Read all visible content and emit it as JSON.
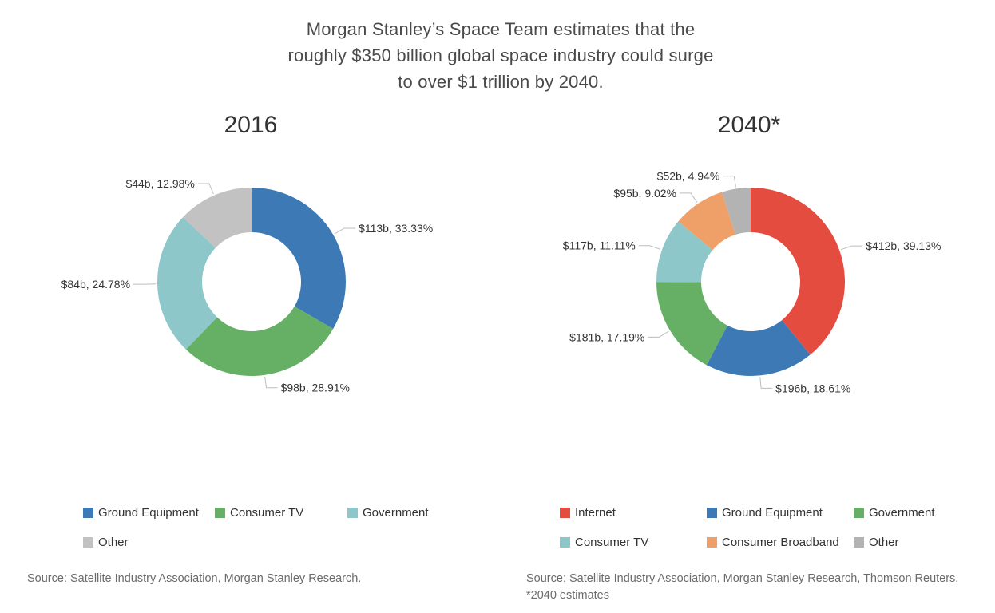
{
  "headline": "Morgan Stanley’s Space Team estimates that the roughly $350 billion global space industry could surge to over $1 trillion by 2040.",
  "headline_lines": [
    "Morgan Stanley’s Space Team estimates that the",
    "roughly $350 billion global space industry could surge",
    "to over $1 trillion by 2040."
  ],
  "chart_data": [
    {
      "type": "pie",
      "donut": true,
      "title": "2016",
      "slices": [
        {
          "name": "Ground Equipment",
          "value": 113,
          "percent": 33.33,
          "label": "$113b, 33.33%",
          "color": "#3d7ab5"
        },
        {
          "name": "Consumer TV",
          "value": 98,
          "percent": 28.91,
          "label": "$98b, 28.91%",
          "color": "#66b066"
        },
        {
          "name": "Government",
          "value": 84,
          "percent": 24.78,
          "label": "$84b, 24.78%",
          "color": "#8dc7c9"
        },
        {
          "name": "Other",
          "value": 44,
          "percent": 12.98,
          "label": "$44b, 12.98%",
          "color": "#c2c2c2"
        }
      ],
      "legend": [
        "Ground Equipment",
        "Consumer TV",
        "Government",
        "Other"
      ],
      "legend_position": "bottom",
      "source": "Source: Satellite Industry Association, Morgan Stanley Research."
    },
    {
      "type": "pie",
      "donut": true,
      "title": "2040*",
      "slices": [
        {
          "name": "Internet",
          "value": 412,
          "percent": 39.13,
          "label": "$412b, 39.13%",
          "color": "#e54c40"
        },
        {
          "name": "Ground Equipment",
          "value": 196,
          "percent": 18.61,
          "label": "$196b, 18.61%",
          "color": "#3d7ab5"
        },
        {
          "name": "Government",
          "value": 181,
          "percent": 17.19,
          "label": "$181b, 17.19%",
          "color": "#66b066"
        },
        {
          "name": "Consumer TV",
          "value": 117,
          "percent": 11.11,
          "label": "$117b, 11.11%",
          "color": "#8dc7c9"
        },
        {
          "name": "Consumer Broadband",
          "value": 95,
          "percent": 9.02,
          "label": "$95b, 9.02%",
          "color": "#eea068"
        },
        {
          "name": "Other",
          "value": 52,
          "percent": 4.94,
          "label": "$52b, 4.94%",
          "color": "#b3b3b3"
        }
      ],
      "legend": [
        "Internet",
        "Ground Equipment",
        "Government",
        "Consumer TV",
        "Consumer Broadband",
        "Other"
      ],
      "legend_position": "bottom",
      "source": "Source: Satellite Industry Association, Morgan Stanley Research, Thomson Reuters. *2040 estimates"
    }
  ]
}
